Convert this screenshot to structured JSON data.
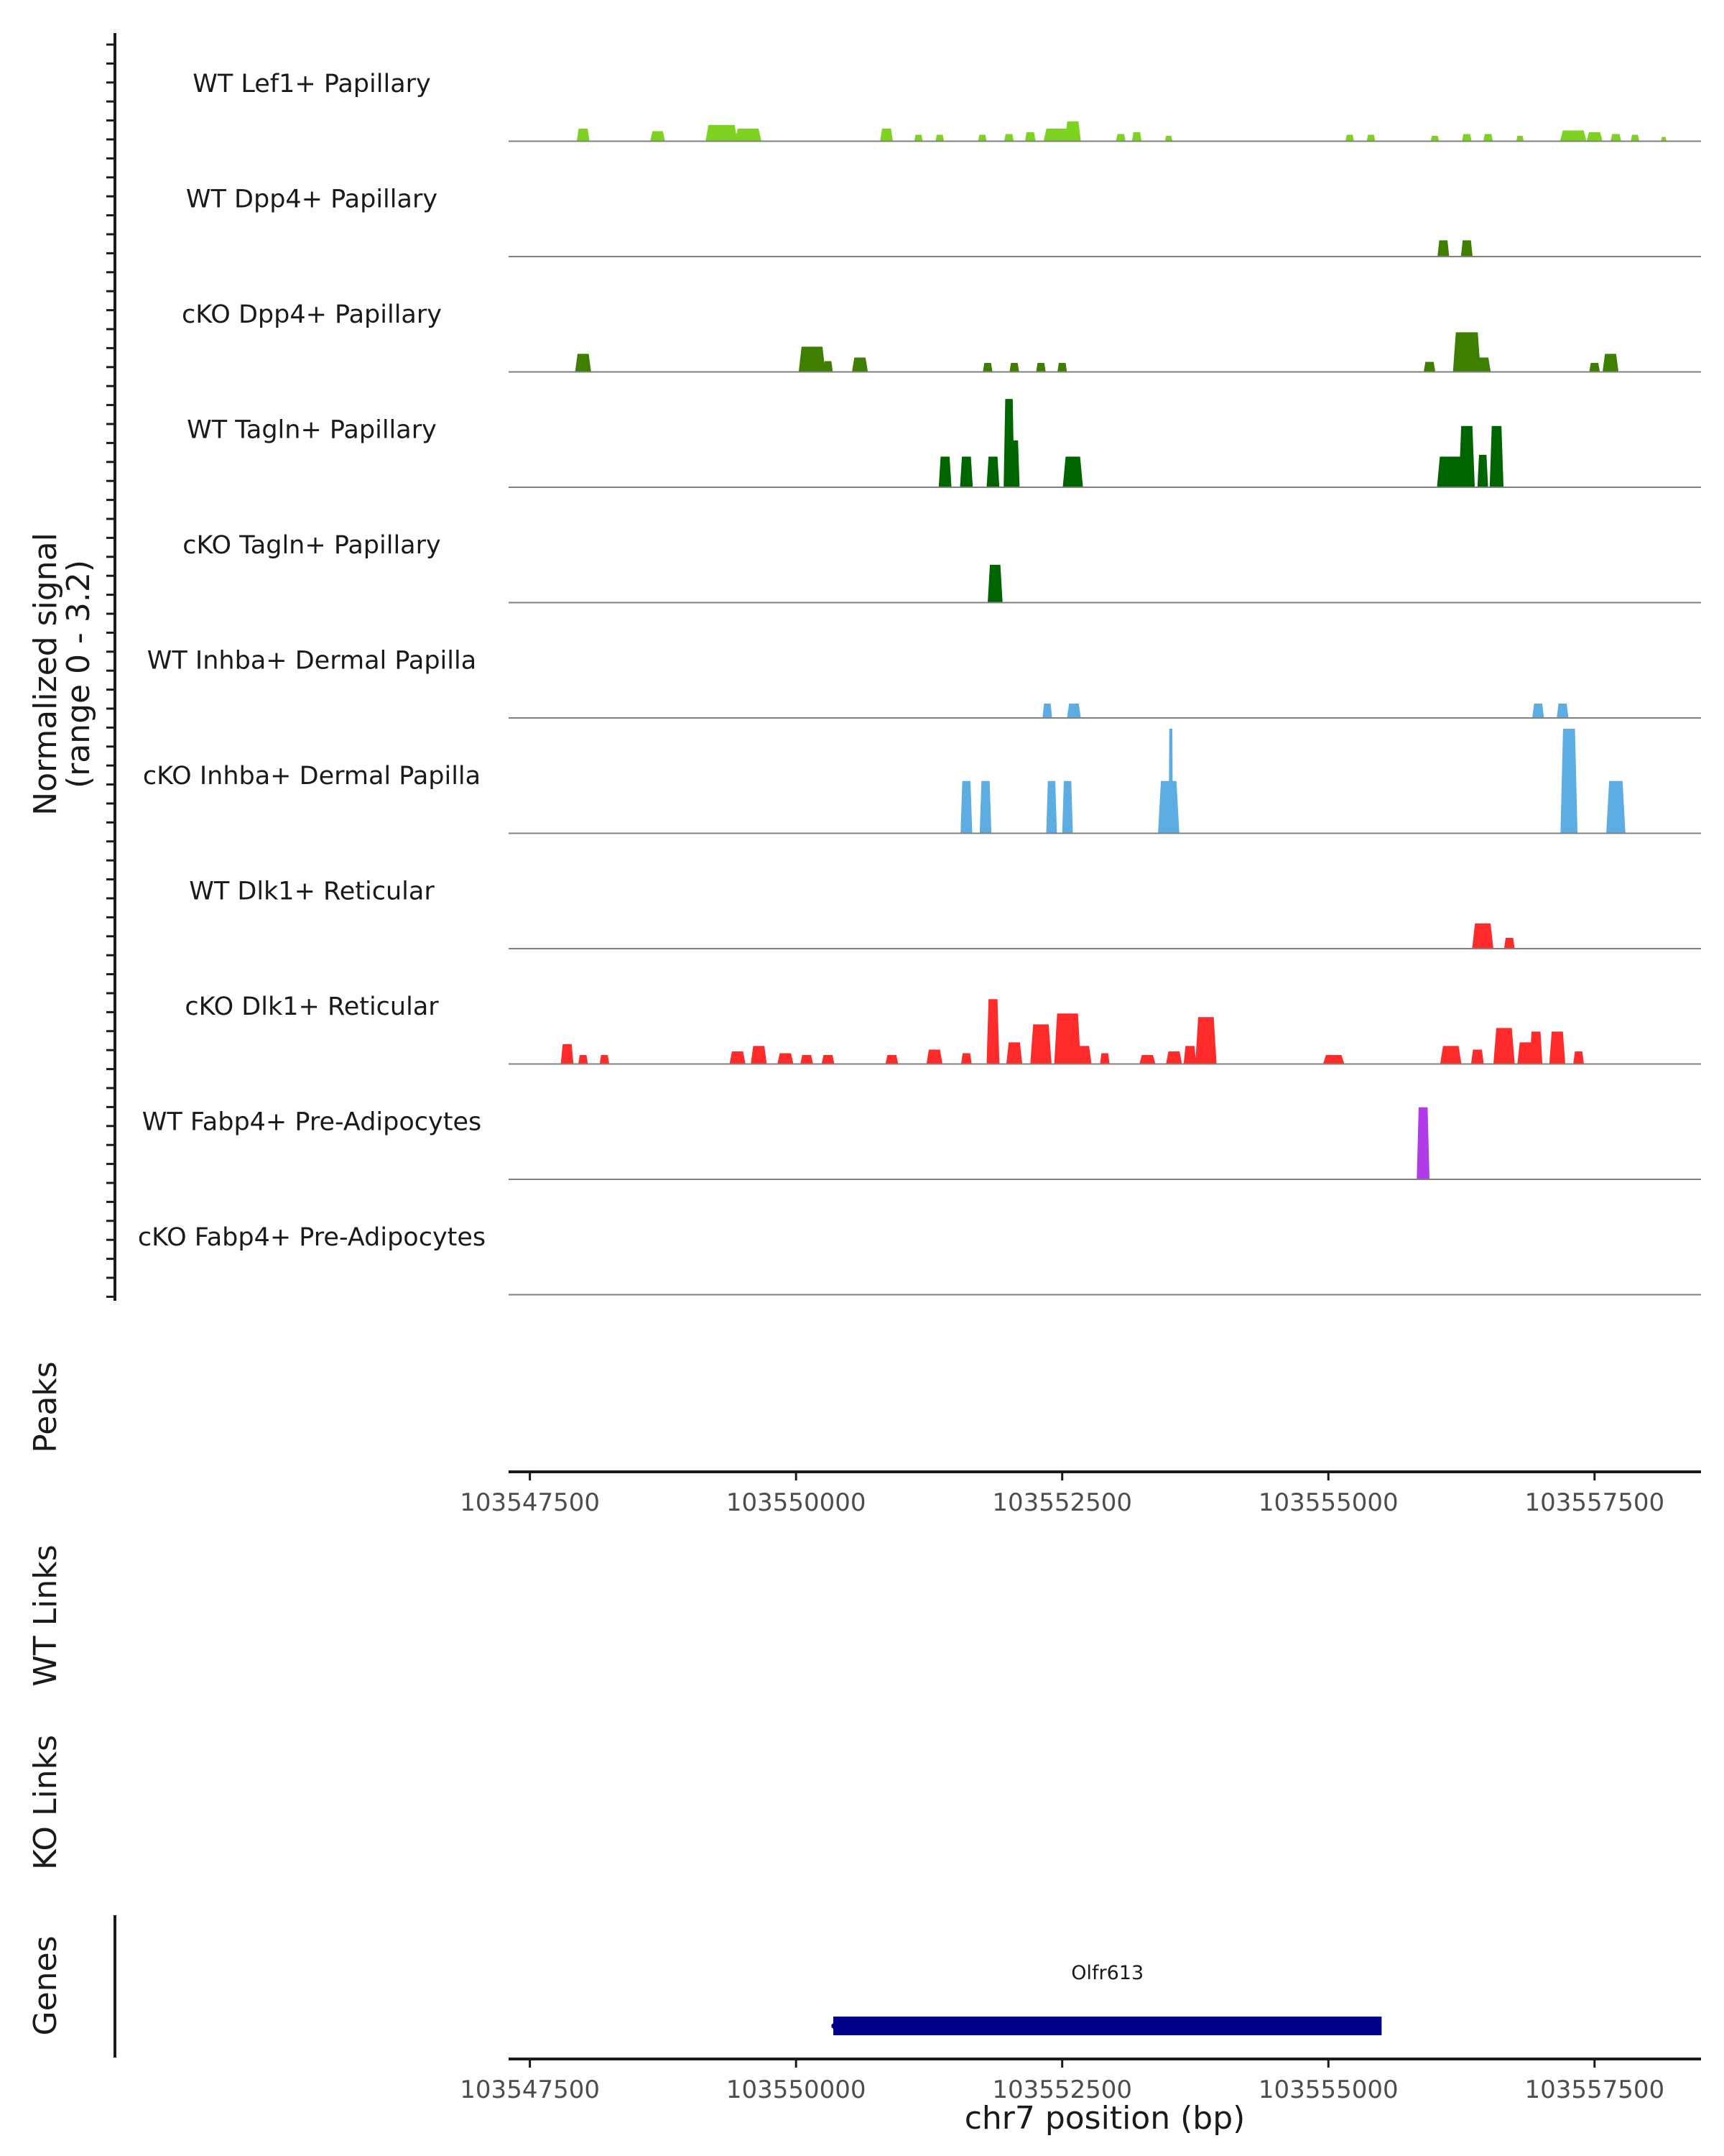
{
  "chart_data": {
    "type": "area",
    "title": "",
    "ylabel": "Normalized signal",
    "ylabel_range": "(range 0 - 3.2)",
    "ylim": [
      0,
      3.2
    ],
    "xlabel": "chr7 position (bp)",
    "xlim": [
      103547300,
      103558500
    ],
    "x_ticks": [
      103547500,
      103550000,
      103552500,
      103555000,
      103557500
    ],
    "x_tick_labels": [
      "103547500",
      "103550000",
      "103552500",
      "103555000",
      "103557500"
    ],
    "panel_labels": {
      "peaks": "Peaks",
      "wt_links": "WT Links",
      "ko_links": "KO Links",
      "genes": "Genes"
    },
    "tracks": [
      {
        "name": "WT Lef1+ Papillary",
        "color": "#7ED321",
        "peaks": [
          [
            103548000,
            0.35,
            120
          ],
          [
            103548700,
            0.28,
            140
          ],
          [
            103549300,
            0.45,
            300
          ],
          [
            103549550,
            0.35,
            250
          ],
          [
            103550850,
            0.35,
            120
          ],
          [
            103551150,
            0.18,
            80
          ],
          [
            103551350,
            0.18,
            80
          ],
          [
            103551750,
            0.18,
            80
          ],
          [
            103552000,
            0.2,
            90
          ],
          [
            103552200,
            0.25,
            100
          ],
          [
            103552450,
            0.35,
            250
          ],
          [
            103552600,
            0.55,
            150
          ],
          [
            103553050,
            0.2,
            90
          ],
          [
            103553200,
            0.25,
            90
          ],
          [
            103553500,
            0.15,
            70
          ],
          [
            103555200,
            0.18,
            80
          ],
          [
            103555400,
            0.18,
            80
          ],
          [
            103556000,
            0.15,
            80
          ],
          [
            103556300,
            0.2,
            90
          ],
          [
            103556500,
            0.2,
            90
          ],
          [
            103556800,
            0.15,
            70
          ],
          [
            103557300,
            0.3,
            250
          ],
          [
            103557500,
            0.25,
            150
          ],
          [
            103557700,
            0.2,
            100
          ],
          [
            103557880,
            0.18,
            80
          ],
          [
            103558150,
            0.12,
            50
          ]
        ]
      },
      {
        "name": "WT Dpp4+ Papillary",
        "color": "#3E7F00",
        "peaks": [
          [
            103556080,
            0.45,
            110
          ],
          [
            103556300,
            0.45,
            110
          ]
        ]
      },
      {
        "name": "cKO Dpp4+ Papillary",
        "color": "#3E7F00",
        "peaks": [
          [
            103548000,
            0.5,
            150
          ],
          [
            103550150,
            0.7,
            250
          ],
          [
            103550300,
            0.3,
            90
          ],
          [
            103550600,
            0.4,
            150
          ],
          [
            103551800,
            0.25,
            90
          ],
          [
            103552050,
            0.25,
            90
          ],
          [
            103552300,
            0.25,
            90
          ],
          [
            103552500,
            0.25,
            90
          ],
          [
            103555950,
            0.28,
            110
          ],
          [
            103556300,
            1.1,
            260
          ],
          [
            103556450,
            0.4,
            150
          ],
          [
            103557500,
            0.25,
            100
          ],
          [
            103557650,
            0.5,
            150
          ]
        ]
      },
      {
        "name": "WT Tagln+ Papillary",
        "color": "#006400",
        "peaks": [
          [
            103551400,
            0.85,
            120
          ],
          [
            103551600,
            0.85,
            120
          ],
          [
            103551850,
            0.85,
            120
          ],
          [
            103552000,
            2.45,
            100
          ],
          [
            103552050,
            1.3,
            100
          ],
          [
            103552600,
            0.85,
            190
          ],
          [
            103556150,
            0.85,
            260
          ],
          [
            103556300,
            1.7,
            150
          ],
          [
            103556450,
            0.9,
            100
          ],
          [
            103556580,
            1.7,
            130
          ]
        ]
      },
      {
        "name": "cKO Tagln+ Papillary",
        "color": "#006400",
        "peaks": [
          [
            103551870,
            1.05,
            140
          ]
        ]
      },
      {
        "name": "WT Inhba+ Dermal Papilla",
        "color": "#5DADE2",
        "peaks": [
          [
            103552360,
            0.4,
            90
          ],
          [
            103552610,
            0.4,
            130
          ],
          [
            103556970,
            0.4,
            110
          ],
          [
            103557200,
            0.4,
            110
          ]
        ]
      },
      {
        "name": "cKO Inhba+ Dermal Papilla",
        "color": "#5DADE2",
        "peaks": [
          [
            103551600,
            1.45,
            110
          ],
          [
            103551780,
            1.45,
            110
          ],
          [
            103552400,
            1.45,
            100
          ],
          [
            103552550,
            1.45,
            100
          ],
          [
            103553500,
            1.45,
            200
          ],
          [
            103553520,
            2.9,
            40
          ],
          [
            103557260,
            2.9,
            160
          ],
          [
            103557700,
            1.45,
            180
          ]
        ]
      },
      {
        "name": "WT Dlk1+ Reticular",
        "color": "#FF2A2A",
        "peaks": [
          [
            103556450,
            0.7,
            200
          ],
          [
            103556700,
            0.3,
            100
          ]
        ]
      },
      {
        "name": "cKO Dlk1+ Reticular",
        "color": "#FF2A2A",
        "peaks": [
          [
            103547850,
            0.55,
            120
          ],
          [
            103548000,
            0.25,
            90
          ],
          [
            103548200,
            0.25,
            90
          ],
          [
            103549450,
            0.35,
            150
          ],
          [
            103549650,
            0.5,
            150
          ],
          [
            103549900,
            0.3,
            150
          ],
          [
            103550100,
            0.25,
            120
          ],
          [
            103550300,
            0.25,
            120
          ],
          [
            103550900,
            0.25,
            120
          ],
          [
            103551300,
            0.4,
            150
          ],
          [
            103551600,
            0.3,
            100
          ],
          [
            103551850,
            1.8,
            120
          ],
          [
            103552050,
            0.6,
            150
          ],
          [
            103552300,
            1.1,
            200
          ],
          [
            103552550,
            1.4,
            250
          ],
          [
            103552700,
            0.5,
            150
          ],
          [
            103552900,
            0.3,
            90
          ],
          [
            103553300,
            0.25,
            150
          ],
          [
            103553550,
            0.35,
            150
          ],
          [
            103553700,
            0.5,
            120
          ],
          [
            103553850,
            1.3,
            200
          ],
          [
            103555050,
            0.25,
            200
          ],
          [
            103556150,
            0.5,
            200
          ],
          [
            103556400,
            0.4,
            120
          ],
          [
            103556650,
            1.0,
            200
          ],
          [
            103556850,
            0.6,
            150
          ],
          [
            103556950,
            0.9,
            120
          ],
          [
            103557150,
            0.9,
            150
          ],
          [
            103557350,
            0.35,
            100
          ]
        ]
      },
      {
        "name": "WT Fabp4+ Pre-Adipocytes",
        "color": "#B03CE8",
        "peaks": [
          [
            103555890,
            2.0,
            120
          ]
        ]
      },
      {
        "name": "cKO Fabp4+ Pre-Adipocytes",
        "color": "#B03CE8",
        "peaks": []
      }
    ],
    "genes": [
      {
        "name": "Olfr613",
        "start": 103550350,
        "end": 103555500,
        "strand": "-",
        "color": "#00008B"
      }
    ]
  }
}
